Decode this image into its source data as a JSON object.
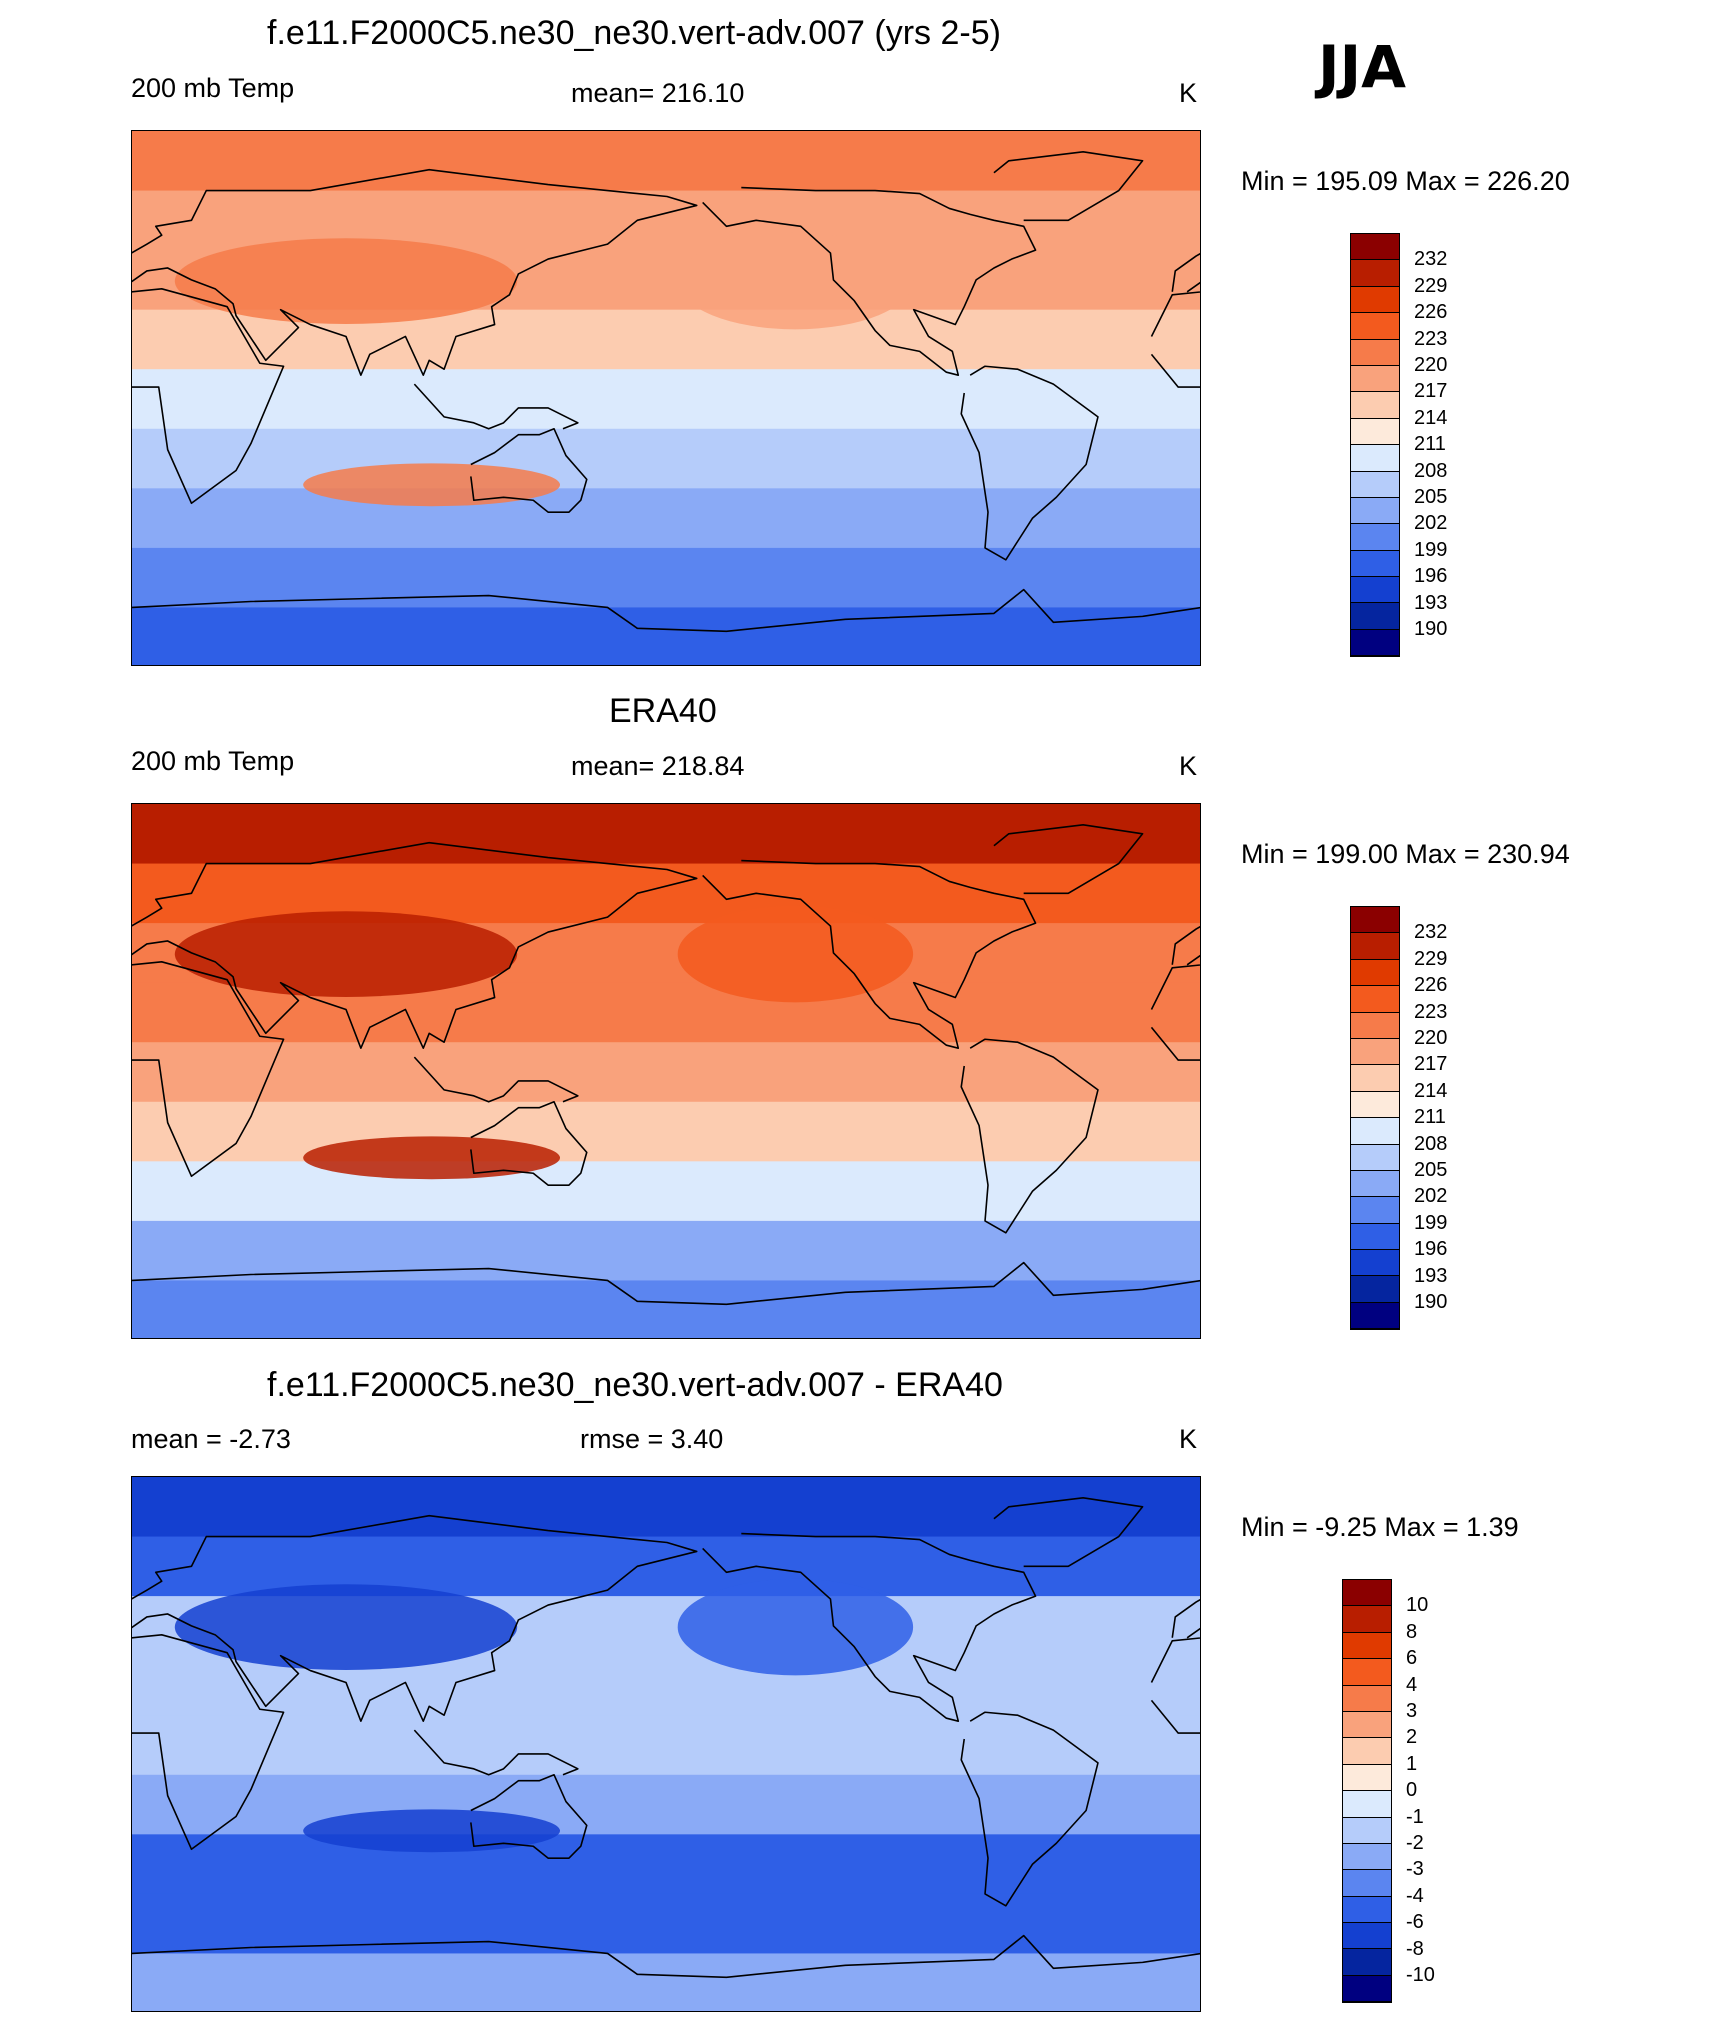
{
  "season": "JJA",
  "panels": [
    {
      "title": "f.e11.F2000C5.ne30_ne30.vert-adv.007 (yrs 2-5)",
      "left_label": "200 mb Temp",
      "center_label": "mean= 216.10",
      "right_label": "K",
      "minmax": "Min = 195.09 Max = 226.20",
      "colorbar": {
        "labels": [
          "232",
          "229",
          "226",
          "223",
          "220",
          "217",
          "214",
          "211",
          "208",
          "205",
          "202",
          "199",
          "196",
          "193",
          "190"
        ],
        "colors": [
          "#8b0000",
          "#b81e00",
          "#e03a00",
          "#f35a1e",
          "#f67b4a",
          "#f9a27c",
          "#fcccb0",
          "#fdeadb",
          "#dbeafd",
          "#b5ccfa",
          "#8aaaf6",
          "#5b85f0",
          "#2f5fe6",
          "#1440d0",
          "#05259f",
          "#000080"
        ]
      },
      "fill_bands": [
        "#f67b4a",
        "#f9a27c",
        "#f9a27c",
        "#fcccb0",
        "#dbeafd",
        "#b5ccfa",
        "#8aaaf6",
        "#5b85f0",
        "#2f5fe6"
      ]
    },
    {
      "title": "ERA40",
      "left_label": "200 mb Temp",
      "center_label": "mean= 218.84",
      "right_label": "K",
      "minmax": "Min = 199.00 Max = 230.94",
      "colorbar": {
        "labels": [
          "232",
          "229",
          "226",
          "223",
          "220",
          "217",
          "214",
          "211",
          "208",
          "205",
          "202",
          "199",
          "196",
          "193",
          "190"
        ],
        "colors": [
          "#8b0000",
          "#b81e00",
          "#e03a00",
          "#f35a1e",
          "#f67b4a",
          "#f9a27c",
          "#fcccb0",
          "#fdeadb",
          "#dbeafd",
          "#b5ccfa",
          "#8aaaf6",
          "#5b85f0",
          "#2f5fe6",
          "#1440d0",
          "#05259f",
          "#000080"
        ]
      },
      "fill_bands": [
        "#b81e00",
        "#f35a1e",
        "#f67b4a",
        "#f67b4a",
        "#f9a27c",
        "#fcccb0",
        "#dbeafd",
        "#8aaaf6",
        "#5b85f0"
      ]
    },
    {
      "title": "f.e11.F2000C5.ne30_ne30.vert-adv.007 - ERA40",
      "left_label": "mean =  -2.73",
      "center_label": "rmse =   3.40",
      "right_label": "K",
      "minmax": "Min =  -9.25 Max =   1.39",
      "colorbar": {
        "labels": [
          "10",
          "8",
          "6",
          "4",
          "3",
          "2",
          "1",
          "0",
          "-1",
          "-2",
          "-3",
          "-4",
          "-6",
          "-8",
          "-10"
        ],
        "colors": [
          "#8b0000",
          "#b81e00",
          "#e03a00",
          "#f35a1e",
          "#f67b4a",
          "#f9a27c",
          "#fcccb0",
          "#fdeadb",
          "#dbeafd",
          "#b5ccfa",
          "#8aaaf6",
          "#5b85f0",
          "#2f5fe6",
          "#1440d0",
          "#05259f",
          "#000080"
        ]
      },
      "fill_bands": [
        "#1440d0",
        "#2f5fe6",
        "#b5ccfa",
        "#b5ccfa",
        "#b5ccfa",
        "#8aaaf6",
        "#2f5fe6",
        "#2f5fe6",
        "#8aaaf6"
      ]
    }
  ]
}
